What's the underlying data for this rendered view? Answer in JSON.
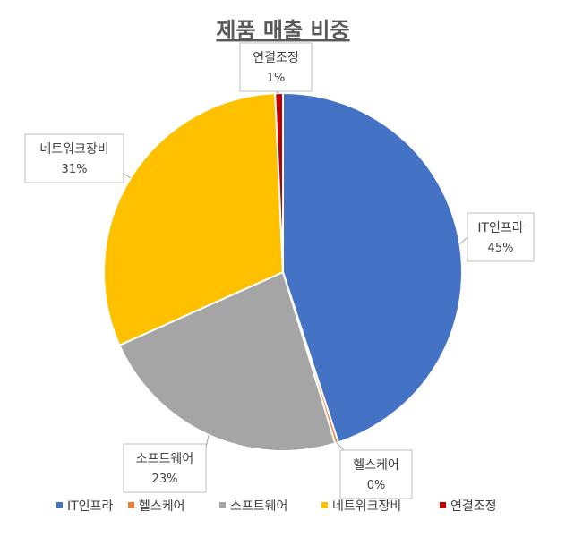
{
  "chart_data": {
    "type": "pie",
    "title": "제품 매출 비중",
    "categories": [
      "IT인프라",
      "헬스케어",
      "소프트웨어",
      "네트워크장비",
      "연결조정"
    ],
    "values": [
      45,
      0.3,
      23,
      31,
      0.7
    ],
    "data_labels": [
      {
        "name": "IT인프라",
        "pct": "45%"
      },
      {
        "name": "헬스케어",
        "pct": "0%"
      },
      {
        "name": "소프트웨어",
        "pct": "23%"
      },
      {
        "name": "네트워크장비",
        "pct": "31%"
      },
      {
        "name": "연결조정",
        "pct": "1%"
      }
    ],
    "colors": [
      "#4472C4",
      "#ED7D31",
      "#A5A5A5",
      "#FFC000",
      "#C00000"
    ],
    "legend": {
      "placement": "bottom",
      "entries": [
        "IT인프라",
        "헬스케어",
        "소프트웨어",
        "네트워크장비",
        "연결조정"
      ]
    }
  }
}
